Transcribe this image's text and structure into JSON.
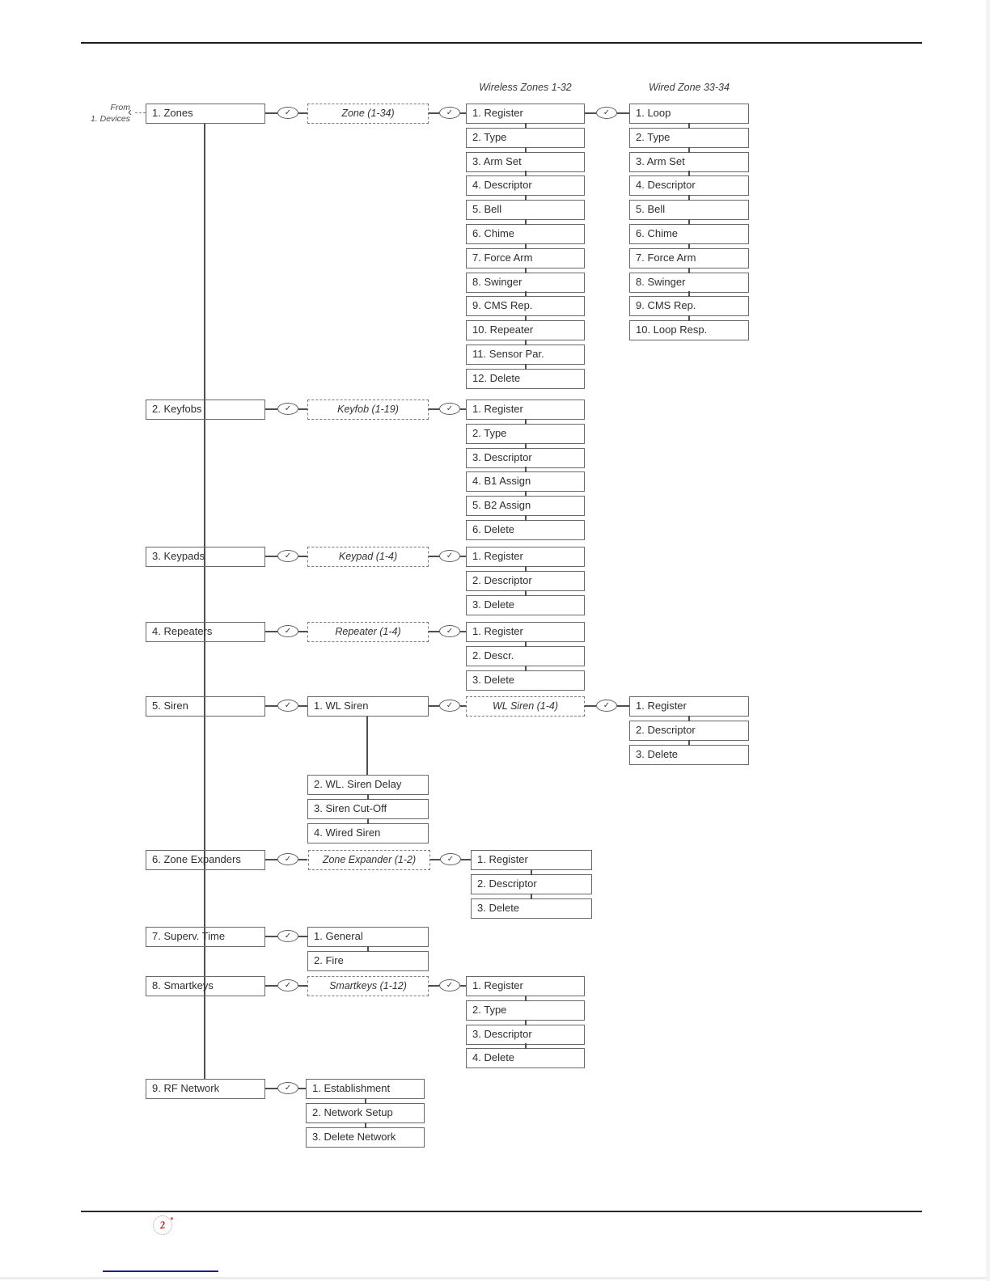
{
  "page": {
    "from_ref": {
      "line1": "From",
      "line2": "1. Devices"
    },
    "column_headers": {
      "wireless": "Wireless Zones 1-32",
      "wired": "Wired Zone 33-34"
    },
    "footer": {
      "stamp_text": "2"
    }
  },
  "icons": {
    "check": "✓"
  },
  "menu_tree": {
    "zones": {
      "label": "1. Zones",
      "param": "Zone (1-34)",
      "wireless_items": [
        "1. Register",
        "2. Type",
        "3. Arm Set",
        "4. Descriptor",
        "5. Bell",
        "6. Chime",
        "7. Force Arm",
        "8. Swinger",
        "9. CMS Rep.",
        "10. Repeater",
        "11. Sensor Par.",
        "12. Delete"
      ],
      "wired_items": [
        "1. Loop",
        "2. Type",
        "3. Arm Set",
        "4. Descriptor",
        "5. Bell",
        "6. Chime",
        "7. Force Arm",
        "8. Swinger",
        "9. CMS Rep.",
        "10. Loop Resp."
      ]
    },
    "keyfobs": {
      "label": "2. Keyfobs",
      "param": "Keyfob (1-19)",
      "items": [
        "1. Register",
        "2. Type",
        "3. Descriptor",
        "4. B1 Assign",
        "5. B2 Assign",
        "6. Delete"
      ]
    },
    "keypads": {
      "label": "3. Keypads",
      "param": "Keypad (1-4)",
      "items": [
        "1. Register",
        "2. Descriptor",
        "3. Delete"
      ]
    },
    "repeaters": {
      "label": "4. Repeaters",
      "param": "Repeater (1-4)",
      "items": [
        "1. Register",
        "2. Descr.",
        "3. Delete"
      ]
    },
    "siren": {
      "label": "5. Siren",
      "wl_siren_label": "1. WL Siren",
      "param": "WL Siren (1-4)",
      "items": [
        "1. Register",
        "2. Descriptor",
        "3. Delete"
      ],
      "sub_items": [
        "2. WL. Siren Delay",
        "3. Siren Cut-Off",
        "4. Wired Siren"
      ]
    },
    "zone_expanders": {
      "label": "6. Zone Expanders",
      "param": "Zone Expander (1-2)",
      "items": [
        "1. Register",
        "2. Descriptor",
        "3. Delete"
      ]
    },
    "superv_time": {
      "label": "7. Superv. Time",
      "items": [
        "1. General",
        "2. Fire"
      ]
    },
    "smartkeys": {
      "label": "8. Smartkeys",
      "param": "Smartkeys (1-12)",
      "items": [
        "1. Register",
        "2. Type",
        "3. Descriptor",
        "4. Delete"
      ]
    },
    "rf_network": {
      "label": "9. RF Network",
      "items": [
        "1. Establishment",
        "2. Network Setup",
        "3. Delete Network"
      ]
    }
  }
}
